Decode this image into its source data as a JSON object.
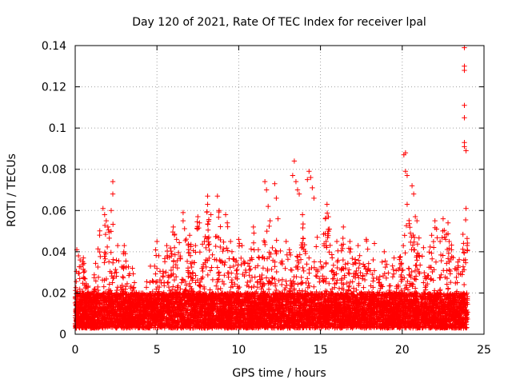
{
  "chart_data": {
    "type": "scatter",
    "title": "Day 120 of 2021, Rate Of TEC Index for receiver lpal",
    "xlabel": "GPS time / hours",
    "ylabel": "ROTI / TECUs",
    "xlim": [
      0,
      25
    ],
    "ylim": [
      0,
      0.14
    ],
    "x_ticks": [
      0,
      5,
      10,
      15,
      20,
      25
    ],
    "x_tick_labels": [
      "0",
      "5",
      "10",
      "15",
      "20",
      "25"
    ],
    "y_ticks": [
      0,
      0.02,
      0.04,
      0.06,
      0.08,
      0.1,
      0.12,
      0.14
    ],
    "y_tick_labels": [
      "0",
      "0.02",
      "0.04",
      "0.06",
      "0.08",
      "0.1",
      "0.12",
      "0.14"
    ],
    "grid": true,
    "marker": "+",
    "color": "#ff0000",
    "series": [
      {
        "name": "ROTI",
        "baseline_band": [
          0.003,
          0.02
        ],
        "points": [
          {
            "x": 0.1,
            "y": 0.041
          },
          {
            "x": 0.2,
            "y": 0.038
          },
          {
            "x": 0.3,
            "y": 0.036
          },
          {
            "x": 0.5,
            "y": 0.037
          },
          {
            "x": 1.7,
            "y": 0.061
          },
          {
            "x": 1.8,
            "y": 0.058
          },
          {
            "x": 1.9,
            "y": 0.055
          },
          {
            "x": 2.0,
            "y": 0.052
          },
          {
            "x": 2.2,
            "y": 0.06
          },
          {
            "x": 2.3,
            "y": 0.074
          },
          {
            "x": 2.3,
            "y": 0.068
          },
          {
            "x": 2.6,
            "y": 0.043
          },
          {
            "x": 3.0,
            "y": 0.043
          },
          {
            "x": 3.5,
            "y": 0.032
          },
          {
            "x": 4.6,
            "y": 0.033
          },
          {
            "x": 5.0,
            "y": 0.045
          },
          {
            "x": 5.6,
            "y": 0.043
          },
          {
            "x": 6.0,
            "y": 0.052
          },
          {
            "x": 6.2,
            "y": 0.046
          },
          {
            "x": 6.6,
            "y": 0.059
          },
          {
            "x": 6.6,
            "y": 0.055
          },
          {
            "x": 7.0,
            "y": 0.048
          },
          {
            "x": 7.5,
            "y": 0.057
          },
          {
            "x": 7.6,
            "y": 0.054
          },
          {
            "x": 7.9,
            "y": 0.045
          },
          {
            "x": 8.1,
            "y": 0.067
          },
          {
            "x": 8.1,
            "y": 0.063
          },
          {
            "x": 8.3,
            "y": 0.058
          },
          {
            "x": 8.7,
            "y": 0.067
          },
          {
            "x": 8.8,
            "y": 0.06
          },
          {
            "x": 9.2,
            "y": 0.058
          },
          {
            "x": 9.3,
            "y": 0.054
          },
          {
            "x": 9.5,
            "y": 0.045
          },
          {
            "x": 10.0,
            "y": 0.046
          },
          {
            "x": 10.2,
            "y": 0.043
          },
          {
            "x": 10.9,
            "y": 0.052
          },
          {
            "x": 11.2,
            "y": 0.041
          },
          {
            "x": 11.6,
            "y": 0.074
          },
          {
            "x": 11.7,
            "y": 0.07
          },
          {
            "x": 11.8,
            "y": 0.062
          },
          {
            "x": 12.2,
            "y": 0.073
          },
          {
            "x": 12.3,
            "y": 0.066
          },
          {
            "x": 12.4,
            "y": 0.056
          },
          {
            "x": 12.9,
            "y": 0.045
          },
          {
            "x": 13.1,
            "y": 0.041
          },
          {
            "x": 13.3,
            "y": 0.077
          },
          {
            "x": 13.4,
            "y": 0.084
          },
          {
            "x": 13.5,
            "y": 0.074
          },
          {
            "x": 13.6,
            "y": 0.07
          },
          {
            "x": 13.7,
            "y": 0.068
          },
          {
            "x": 13.9,
            "y": 0.058
          },
          {
            "x": 14.2,
            "y": 0.075
          },
          {
            "x": 14.3,
            "y": 0.079
          },
          {
            "x": 14.4,
            "y": 0.076
          },
          {
            "x": 14.5,
            "y": 0.071
          },
          {
            "x": 14.6,
            "y": 0.066
          },
          {
            "x": 14.8,
            "y": 0.047
          },
          {
            "x": 15.3,
            "y": 0.056
          },
          {
            "x": 15.4,
            "y": 0.063
          },
          {
            "x": 15.5,
            "y": 0.05
          },
          {
            "x": 16.0,
            "y": 0.045
          },
          {
            "x": 16.4,
            "y": 0.052
          },
          {
            "x": 16.8,
            "y": 0.045
          },
          {
            "x": 17.3,
            "y": 0.043
          },
          {
            "x": 17.8,
            "y": 0.046
          },
          {
            "x": 18.3,
            "y": 0.044
          },
          {
            "x": 18.9,
            "y": 0.04
          },
          {
            "x": 19.5,
            "y": 0.037
          },
          {
            "x": 20.1,
            "y": 0.087
          },
          {
            "x": 20.2,
            "y": 0.088
          },
          {
            "x": 20.2,
            "y": 0.079
          },
          {
            "x": 20.3,
            "y": 0.077
          },
          {
            "x": 20.3,
            "y": 0.063
          },
          {
            "x": 20.5,
            "y": 0.049
          },
          {
            "x": 20.6,
            "y": 0.072
          },
          {
            "x": 20.7,
            "y": 0.068
          },
          {
            "x": 20.8,
            "y": 0.057
          },
          {
            "x": 20.9,
            "y": 0.055
          },
          {
            "x": 21.3,
            "y": 0.042
          },
          {
            "x": 21.8,
            "y": 0.048
          },
          {
            "x": 22.0,
            "y": 0.055
          },
          {
            "x": 22.1,
            "y": 0.051
          },
          {
            "x": 22.5,
            "y": 0.056
          },
          {
            "x": 22.8,
            "y": 0.054
          },
          {
            "x": 23.4,
            "y": 0.035
          },
          {
            "x": 23.8,
            "y": 0.139
          },
          {
            "x": 23.8,
            "y": 0.13
          },
          {
            "x": 23.8,
            "y": 0.128
          },
          {
            "x": 23.8,
            "y": 0.111
          },
          {
            "x": 23.8,
            "y": 0.105
          },
          {
            "x": 23.8,
            "y": 0.093
          },
          {
            "x": 23.8,
            "y": 0.091
          },
          {
            "x": 23.9,
            "y": 0.089
          },
          {
            "x": 23.9,
            "y": 0.061
          }
        ]
      }
    ]
  }
}
